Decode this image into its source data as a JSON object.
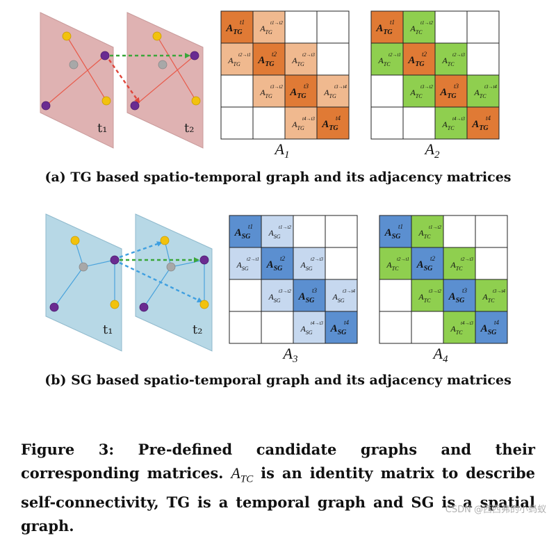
{
  "panels": [
    {
      "id": "a",
      "plane_fill": "#dfb2b2",
      "plane_stroke": "#c89a9a",
      "edge_color": "#e85a4a",
      "arrow_green": "#3aa63a",
      "arrow_other": "#e0453a",
      "plane_labels": [
        "t₁",
        "t₂"
      ],
      "caption": "(a) TG based spatio-temporal graph and its adjacency matrices",
      "matrices": [
        {
          "label": "A",
          "sub": "1",
          "cells": [
            [
              "self:TG:t1",
              "pair:TG:t1→t2",
              "",
              ""
            ],
            [
              "pair:TG:t2→t1",
              "self:TG:t2",
              "pair:TG:t2→t3",
              ""
            ],
            [
              "",
              "pair:TG:t3→t2",
              "self:TG:t3",
              "pair:TG:t3→t4"
            ],
            [
              "",
              "",
              "pair:TG:t4→t3",
              "self:TG:t4"
            ]
          ]
        },
        {
          "label": "A",
          "sub": "2",
          "cells": [
            [
              "self:TG:t1",
              "pair:TC:t1→t2",
              "",
              ""
            ],
            [
              "pair:TC:t2→t1",
              "self:TG:t2",
              "pair:TC:t2→t3",
              ""
            ],
            [
              "",
              "pair:TC:t3→t2",
              "self:TG:t3",
              "pair:TC:t3→t4"
            ],
            [
              "",
              "",
              "pair:TC:t4→t3",
              "self:TG:t4"
            ]
          ]
        }
      ]
    },
    {
      "id": "b",
      "plane_fill": "#b7d8e6",
      "plane_stroke": "#8fb9cc",
      "edge_color": "#4aa3dc",
      "arrow_green": "#3aa63a",
      "arrow_other": "#3f9fe0",
      "plane_labels": [
        "t₁",
        "t₂"
      ],
      "caption": "(b) SG based spatio-temporal graph and its adjacency matrices",
      "matrices": [
        {
          "label": "A",
          "sub": "3",
          "cells": [
            [
              "self:SG:t1",
              "pair:SG:t1→t2",
              "",
              ""
            ],
            [
              "pair:SG:t2→t1",
              "self:SG:t2",
              "pair:SG:t2→t3",
              ""
            ],
            [
              "",
              "pair:SG:t3→t2",
              "self:SG:t3",
              "pair:SG:t3→t4"
            ],
            [
              "",
              "",
              "pair:SG:t4→t3",
              "self:SG:t4"
            ]
          ]
        },
        {
          "label": "A",
          "sub": "4",
          "cells": [
            [
              "self:SG:t1",
              "pair:TC:t1→t2",
              "",
              ""
            ],
            [
              "pair:TC:t2→t1",
              "self:SG:t2",
              "pair:TC:t2→t3",
              ""
            ],
            [
              "",
              "pair:TC:t3→t2",
              "self:SG:t3",
              "pair:TC:t3→t4"
            ],
            [
              "",
              "",
              "pair:TC:t4→t3",
              "self:SG:t4"
            ]
          ]
        }
      ]
    }
  ],
  "colors": {
    "TG_self": "#e07a35",
    "TG_pair": "#f0b98f",
    "SG_self": "#5b8fd0",
    "SG_pair": "#c6d8ef",
    "TC_pair": "#8fcf4f",
    "node_purple": "#6a2b91",
    "node_yellow": "#f2c20e",
    "node_gray": "#a8a8a8"
  },
  "figure_caption": {
    "prefix": "Figure 3: Pre-defined candidate graphs and their corresponding matrices. ",
    "math": "A",
    "math_sub": "TC",
    "suffix": " is an identity matrix to describe self-connectivity, TG is a temporal graph and SG is a spatial graph."
  },
  "watermark": "CSDN @西西弗的小蚂蚁"
}
